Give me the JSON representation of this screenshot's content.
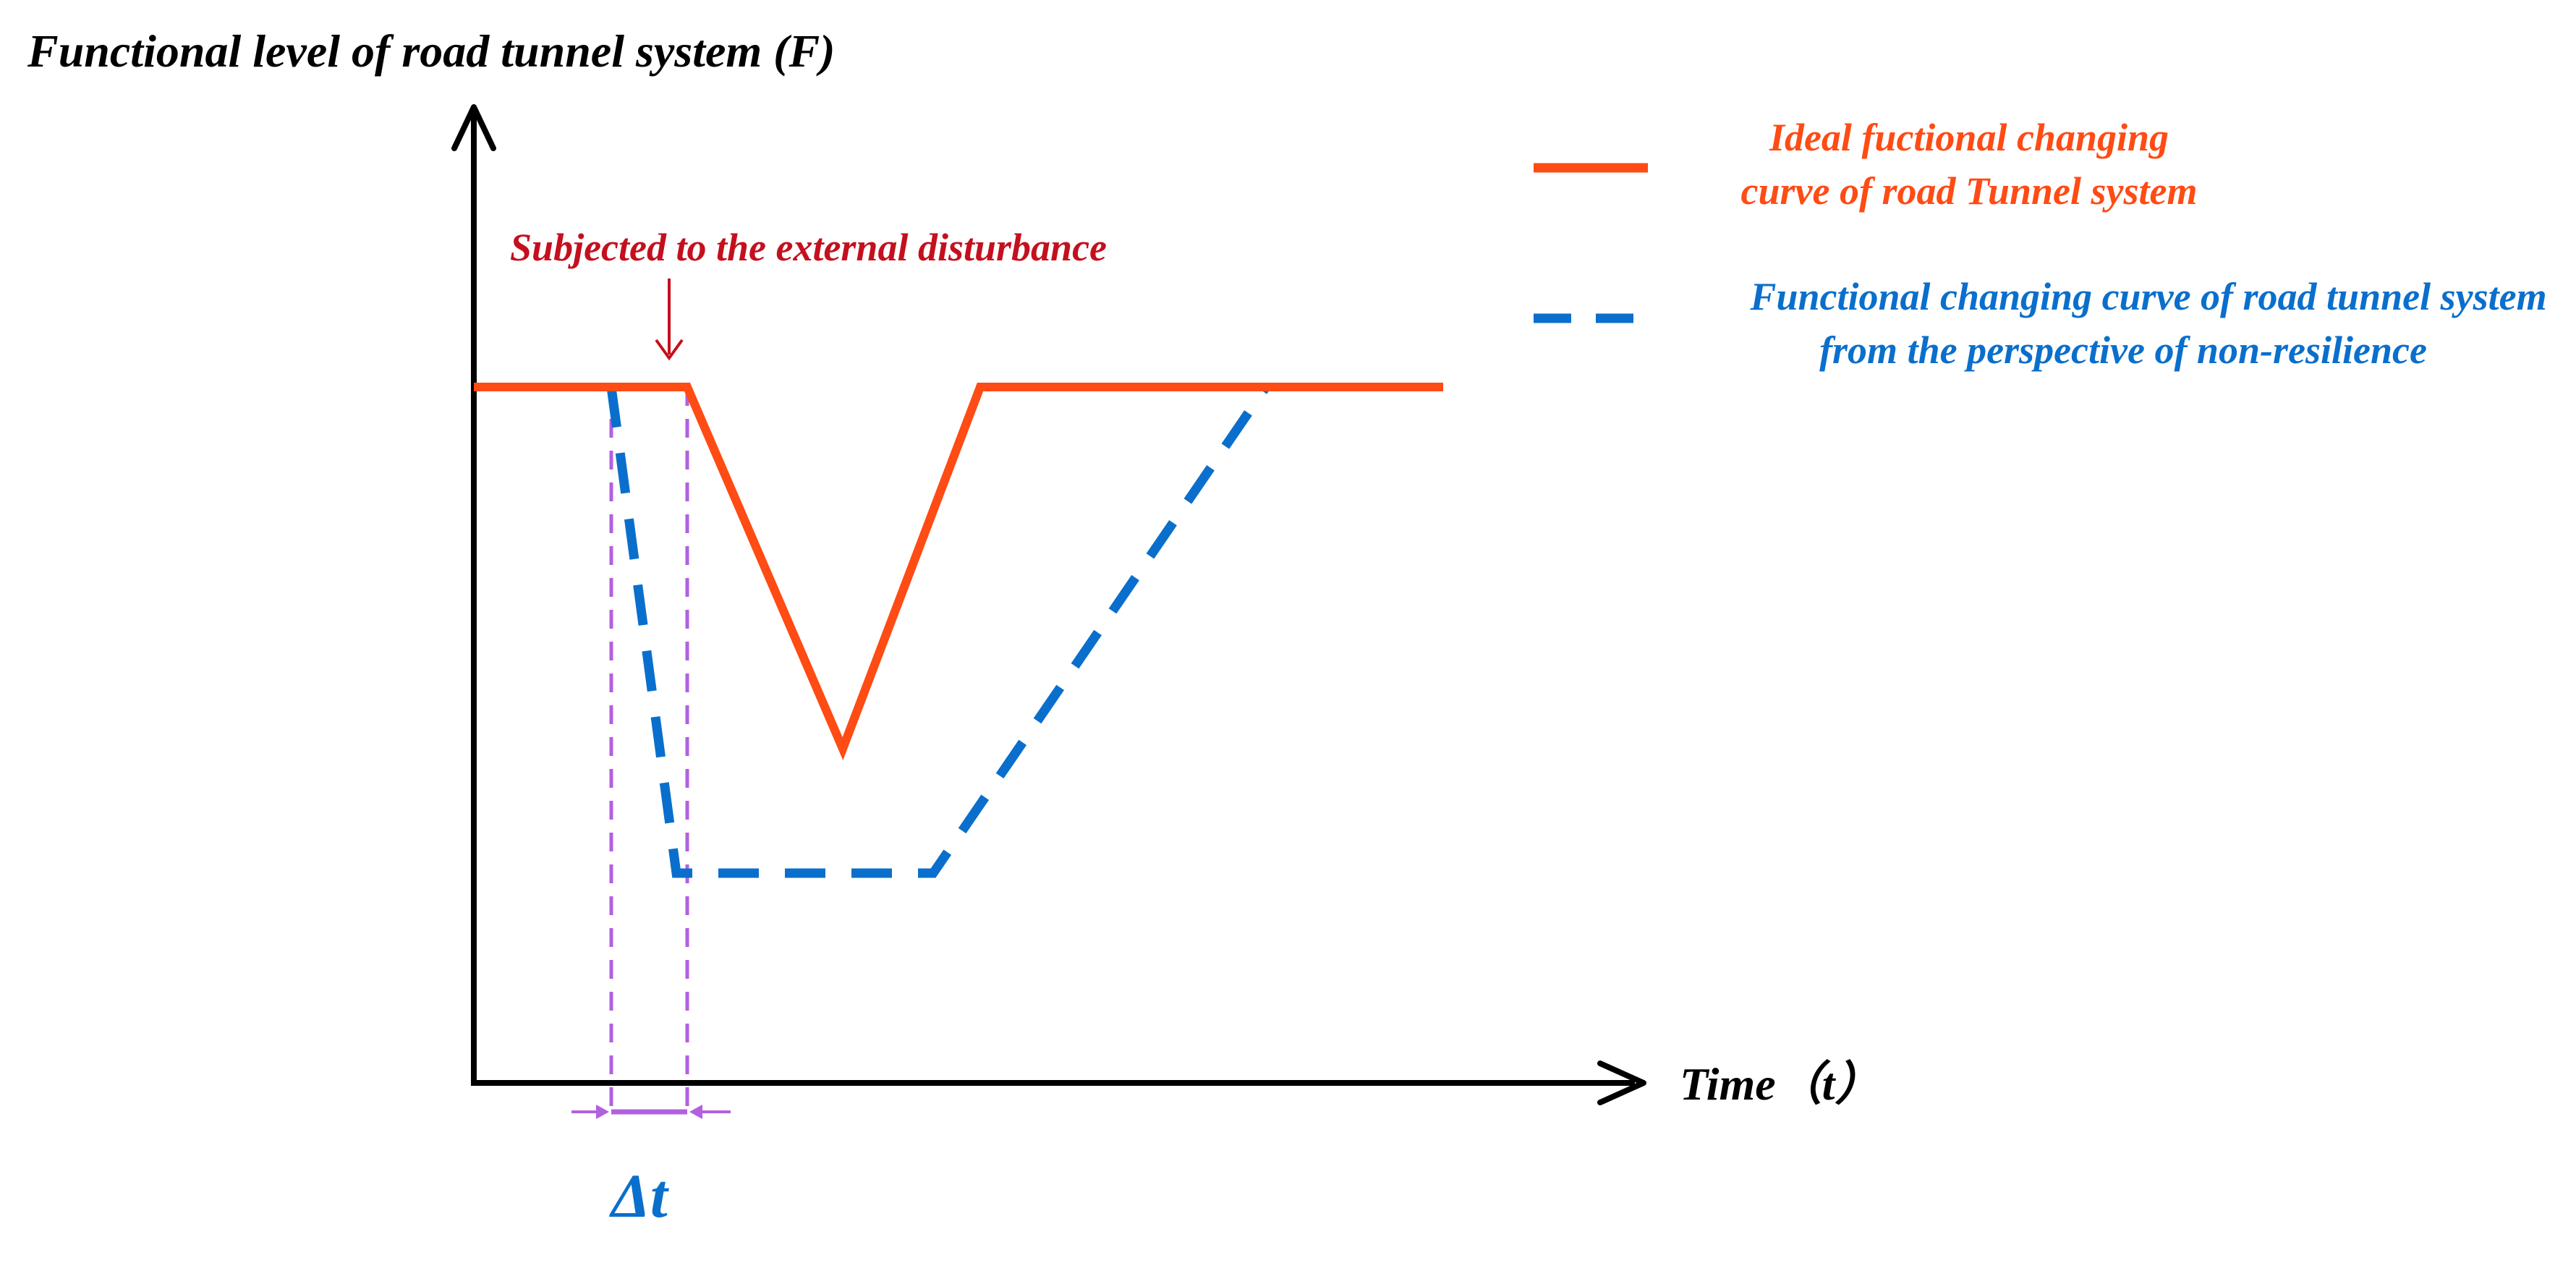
{
  "y_axis_title": "Functional level of road tunnel system (F)",
  "x_axis_title": "Time（t）",
  "disturbance_annotation": "Subjected to the external disturbance",
  "delta_t_label": "Δt",
  "legend": {
    "ideal": {
      "lines": [
        "Ideal fuctional changing",
        "curve of road Tunnel system"
      ]
    },
    "non_resilience": {
      "lines": [
        "Functional changing curve of road tunnel system",
        "from the perspective of non-resilience"
      ]
    }
  },
  "colors": {
    "axis": "#000000",
    "ideal": "#ff4b14",
    "non_resilience": "#0a6fcc",
    "delta_guides": "#b260e0",
    "annotation": "#c4101e"
  },
  "curves": {
    "ideal": [
      [
        0,
        0.78
      ],
      [
        0.22,
        0.78
      ],
      [
        0.38,
        0.28
      ],
      [
        0.52,
        0.78
      ],
      [
        1.0,
        0.78
      ]
    ],
    "non_resilience": [
      [
        0.14,
        0.78
      ],
      [
        0.21,
        0.04
      ],
      [
        0.47,
        0.04
      ],
      [
        0.84,
        0.78
      ]
    ]
  },
  "markers": {
    "disturbance_t": 0.22,
    "delta_start_t": 0.14,
    "delta_end_t": 0.22
  }
}
